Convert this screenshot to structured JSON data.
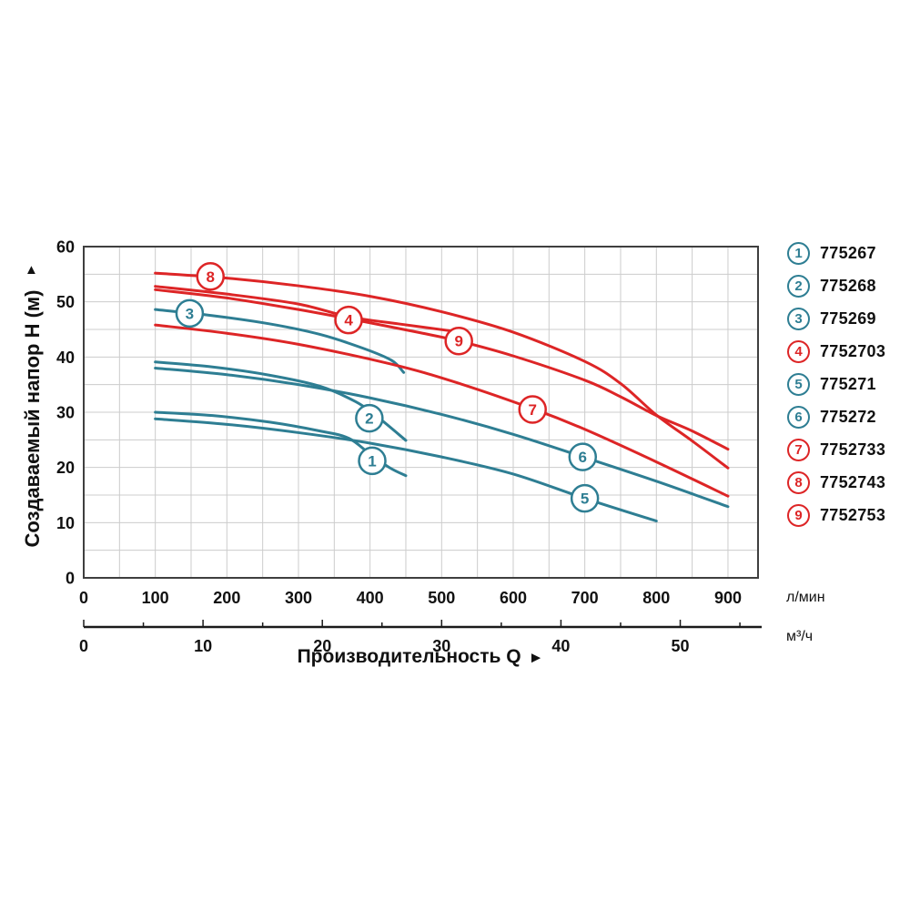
{
  "page": {
    "background": "#ffffff"
  },
  "colors": {
    "teal": "#2E7E93",
    "red": "#DD2526",
    "grid": "#cccccc",
    "border": "#3f3f3f",
    "axis_line": "#1a1a1a",
    "text": "#111111",
    "circle_fill": "#ffffff"
  },
  "chart": {
    "y_axis": {
      "title": "Создаваемый напор H (м)",
      "arrow": "▲",
      "ticks": [
        0,
        10,
        20,
        30,
        40,
        50,
        60
      ],
      "max": 60,
      "grid_step": 5
    },
    "x_axis": {
      "title": "Производительность Q",
      "arrow": "►",
      "primary_unit": "л/мин",
      "primary_ticks": [
        0,
        100,
        200,
        300,
        400,
        500,
        600,
        700,
        800,
        900
      ],
      "primary_grid_step": 50,
      "primary_max": 942,
      "secondary_unit": "м³/ч",
      "secondary_ticks": [
        0,
        10,
        20,
        30,
        40,
        50
      ],
      "secondary_tick_step": 5,
      "secondary_tick_max": 55,
      "lmin_per_m3h": 16.6667
    }
  },
  "chart_data": {
    "type": "line",
    "x_unit": "л/мин",
    "y_unit": "м",
    "x_range": [
      0,
      942
    ],
    "y_range": [
      0,
      60
    ],
    "grid": "on",
    "series": [
      {
        "num": "1",
        "model": "775267",
        "color": "teal",
        "label_at": [
          403,
          21.2
        ],
        "points": [
          [
            100,
            30.0
          ],
          [
            180,
            29.4
          ],
          [
            260,
            28.2
          ],
          [
            330,
            26.6
          ],
          [
            370,
            25.3
          ],
          [
            400,
            22.4
          ],
          [
            428,
            19.9
          ],
          [
            450,
            18.5
          ]
        ]
      },
      {
        "num": "2",
        "model": "775268",
        "color": "teal",
        "label_at": [
          399,
          28.9
        ],
        "points": [
          [
            100,
            39.1
          ],
          [
            180,
            38.2
          ],
          [
            260,
            36.7
          ],
          [
            330,
            34.7
          ],
          [
            380,
            31.9
          ],
          [
            410,
            29.2
          ],
          [
            450,
            24.9
          ]
        ]
      },
      {
        "num": "3",
        "model": "775269",
        "color": "teal",
        "label_at": [
          148,
          47.9
        ],
        "points": [
          [
            100,
            48.6
          ],
          [
            180,
            47.5
          ],
          [
            260,
            46.0
          ],
          [
            330,
            44.1
          ],
          [
            390,
            41.6
          ],
          [
            430,
            39.4
          ],
          [
            447,
            37.2
          ]
        ]
      },
      {
        "num": "4",
        "model": "7752703",
        "color": "red",
        "label_at": [
          370,
          46.7
        ],
        "points": [
          [
            100,
            52.8
          ],
          [
            200,
            51.4
          ],
          [
            300,
            49.6
          ],
          [
            370,
            47.3
          ],
          [
            440,
            46.0
          ],
          [
            515,
            44.7
          ]
        ]
      },
      {
        "num": "5",
        "model": "775271",
        "color": "teal",
        "label_at": [
          700,
          14.4
        ],
        "points": [
          [
            100,
            28.8
          ],
          [
            200,
            27.8
          ],
          [
            300,
            26.3
          ],
          [
            400,
            24.4
          ],
          [
            500,
            21.9
          ],
          [
            600,
            18.8
          ],
          [
            700,
            14.4
          ],
          [
            800,
            10.3
          ]
        ]
      },
      {
        "num": "6",
        "model": "775272",
        "color": "teal",
        "label_at": [
          697,
          21.9
        ],
        "points": [
          [
            100,
            38.0
          ],
          [
            200,
            36.8
          ],
          [
            300,
            35.0
          ],
          [
            400,
            32.6
          ],
          [
            500,
            29.6
          ],
          [
            600,
            26.0
          ],
          [
            700,
            21.8
          ],
          [
            800,
            17.5
          ],
          [
            900,
            12.9
          ]
        ]
      },
      {
        "num": "7",
        "model": "7752733",
        "color": "red",
        "label_at": [
          627,
          30.5
        ],
        "points": [
          [
            100,
            45.8
          ],
          [
            200,
            44.3
          ],
          [
            300,
            42.3
          ],
          [
            430,
            38.7
          ],
          [
            520,
            35.4
          ],
          [
            630,
            30.5
          ],
          [
            700,
            26.9
          ],
          [
            800,
            21.0
          ],
          [
            900,
            14.8
          ]
        ]
      },
      {
        "num": "8",
        "model": "7752743",
        "color": "red",
        "label_at": [
          177,
          54.6
        ],
        "points": [
          [
            100,
            55.2
          ],
          [
            200,
            54.3
          ],
          [
            300,
            52.9
          ],
          [
            400,
            51.0
          ],
          [
            500,
            48.2
          ],
          [
            600,
            44.5
          ],
          [
            700,
            39.2
          ],
          [
            750,
            35.2
          ],
          [
            800,
            29.5
          ],
          [
            850,
            24.8
          ],
          [
            900,
            19.9
          ]
        ]
      },
      {
        "num": "9",
        "model": "7752753",
        "color": "red",
        "label_at": [
          524,
          42.9
        ],
        "points": [
          [
            100,
            52.2
          ],
          [
            200,
            50.7
          ],
          [
            300,
            48.6
          ],
          [
            400,
            46.2
          ],
          [
            470,
            44.4
          ],
          [
            524,
            42.9
          ],
          [
            600,
            40.2
          ],
          [
            700,
            35.8
          ],
          [
            750,
            32.8
          ],
          [
            800,
            29.4
          ],
          [
            850,
            26.6
          ],
          [
            900,
            23.3
          ]
        ]
      }
    ]
  },
  "legend": {
    "items": [
      {
        "num": "1",
        "model": "775267",
        "color": "teal"
      },
      {
        "num": "2",
        "model": "775268",
        "color": "teal"
      },
      {
        "num": "3",
        "model": "775269",
        "color": "teal"
      },
      {
        "num": "4",
        "model": "7752703",
        "color": "red"
      },
      {
        "num": "5",
        "model": "775271",
        "color": "teal"
      },
      {
        "num": "6",
        "model": "775272",
        "color": "teal"
      },
      {
        "num": "7",
        "model": "7752733",
        "color": "red"
      },
      {
        "num": "8",
        "model": "7752743",
        "color": "red"
      },
      {
        "num": "9",
        "model": "7752753",
        "color": "red"
      }
    ]
  }
}
